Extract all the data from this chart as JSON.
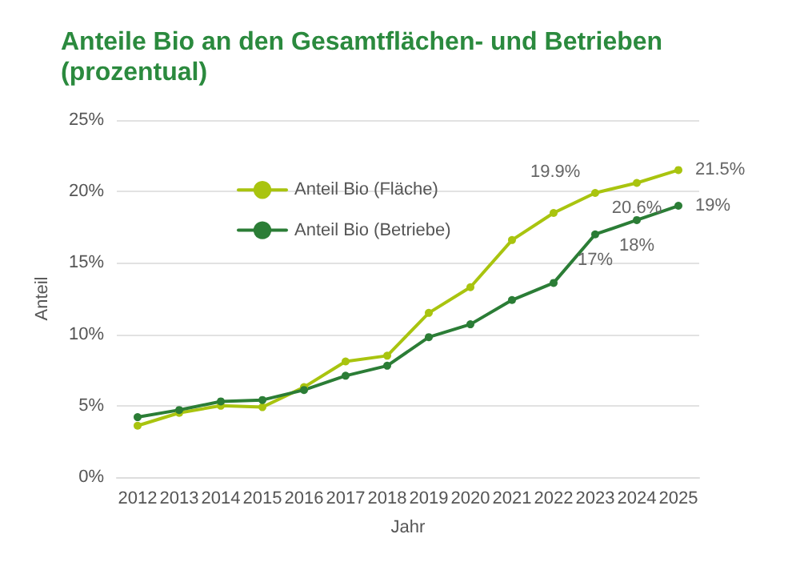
{
  "chart_data": {
    "type": "line",
    "title": "Anteile Bio an den Gesamtflächen- und Betrieben\n(prozentual)",
    "xlabel": "Jahr",
    "ylabel": "Anteil",
    "categories": [
      "2012",
      "2013",
      "2014",
      "2015",
      "2016",
      "2017",
      "2018",
      "2019",
      "2020",
      "2021",
      "2022",
      "2023",
      "2024",
      "2025"
    ],
    "series": [
      {
        "name": "Anteil Bio (Fläche)",
        "color": "#a9c40f",
        "values": [
          3.6,
          4.5,
          5.0,
          4.9,
          6.3,
          8.1,
          8.5,
          11.5,
          13.3,
          16.6,
          18.5,
          19.9,
          20.6,
          21.5
        ],
        "value_labels": [
          null,
          null,
          null,
          null,
          null,
          null,
          null,
          null,
          null,
          null,
          null,
          "19.9%",
          "20.6%",
          "21.5%"
        ]
      },
      {
        "name": "Anteil Bio (Betriebe)",
        "color": "#2b7d36",
        "values": [
          4.2,
          4.7,
          5.3,
          5.4,
          6.1,
          7.1,
          7.8,
          9.8,
          10.7,
          12.4,
          13.6,
          17,
          18,
          19
        ],
        "value_labels": [
          null,
          null,
          null,
          null,
          null,
          null,
          null,
          null,
          null,
          null,
          null,
          "17%",
          "18%",
          "19%"
        ]
      }
    ],
    "ylim": [
      0,
      25
    ],
    "yticks": [
      {
        "value": 0,
        "label": "0%"
      },
      {
        "value": 5,
        "label": "5%"
      },
      {
        "value": 10,
        "label": "10%"
      },
      {
        "value": 15,
        "label": "15%"
      },
      {
        "value": 20,
        "label": "20%"
      },
      {
        "value": 25,
        "label": "25%"
      }
    ],
    "grid": "y",
    "legend": "top left",
    "marker": "circle",
    "line_style": "solid"
  }
}
